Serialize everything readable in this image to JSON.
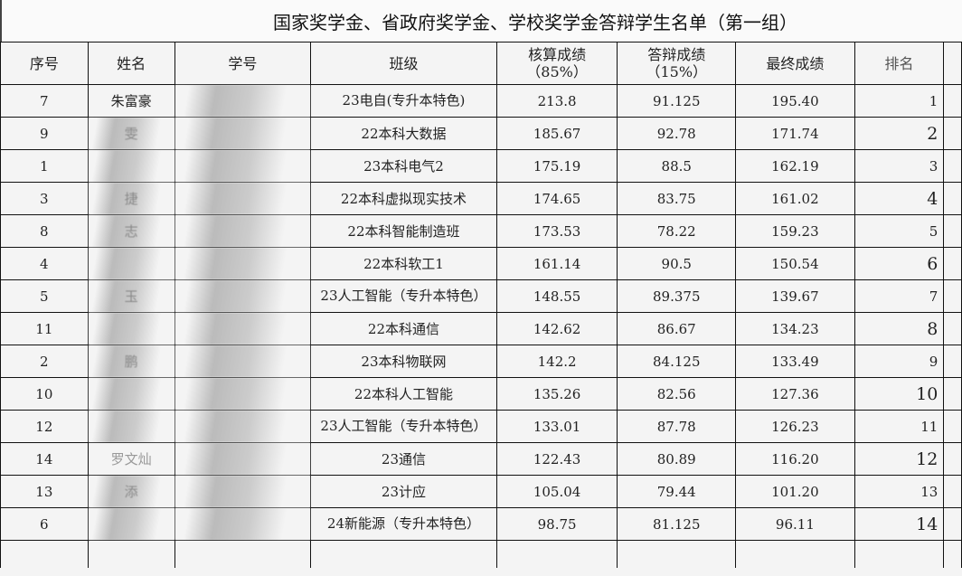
{
  "title": "国家奖学金、省政府奖学金、学校奖学金答辩学生名单（第一组）",
  "headers": {
    "no": "序号",
    "name": "姓名",
    "id": "学号",
    "class": "班级",
    "calc": "核算成绩",
    "calc_pct": "（85%）",
    "defense": "答辩成绩",
    "defense_pct": "（15%）",
    "final": "最终成绩",
    "rank": "排名"
  },
  "rows": [
    {
      "no": "7",
      "name": "朱富豪",
      "class": "23电自(专升本特色)",
      "calc": "213.8",
      "defense": "91.125",
      "final": "195.40",
      "rank": "1"
    },
    {
      "no": "9",
      "name": "雯",
      "class": "22本科大数据",
      "calc": "185.67",
      "defense": "92.78",
      "final": "171.74",
      "rank": "2"
    },
    {
      "no": "1",
      "name": "",
      "class": "23本科电气2",
      "calc": "175.19",
      "defense": "88.5",
      "final": "162.19",
      "rank": "3"
    },
    {
      "no": "3",
      "name": "捷",
      "class": "22本科虚拟现实技术",
      "calc": "174.65",
      "defense": "83.75",
      "final": "161.02",
      "rank": "4"
    },
    {
      "no": "8",
      "name": "志",
      "class": "22本科智能制造班",
      "calc": "173.53",
      "defense": "78.22",
      "final": "159.23",
      "rank": "5"
    },
    {
      "no": "4",
      "name": "",
      "class": "22本科软工1",
      "calc": "161.14",
      "defense": "90.5",
      "final": "150.54",
      "rank": "6"
    },
    {
      "no": "5",
      "name": "玉",
      "class": "23人工智能（专升本特色）",
      "calc": "148.55",
      "defense": "89.375",
      "final": "139.67",
      "rank": "7"
    },
    {
      "no": "11",
      "name": "",
      "class": "22本科通信",
      "calc": "142.62",
      "defense": "86.67",
      "final": "134.23",
      "rank": "8"
    },
    {
      "no": "2",
      "name": "鹏",
      "class": "23本科物联网",
      "calc": "142.2",
      "defense": "84.125",
      "final": "133.49",
      "rank": "9"
    },
    {
      "no": "10",
      "name": "",
      "class": "22本科人工智能",
      "calc": "135.26",
      "defense": "82.56",
      "final": "127.36",
      "rank": "10"
    },
    {
      "no": "12",
      "name": "",
      "class": "23人工智能（专升本特色）",
      "calc": "133.01",
      "defense": "87.78",
      "final": "126.23",
      "rank": "11"
    },
    {
      "no": "14",
      "name": "罗文灿",
      "class": "23通信",
      "calc": "122.43",
      "defense": "80.89",
      "final": "116.20",
      "rank": "12"
    },
    {
      "no": "13",
      "name": "添",
      "class": "23计应",
      "calc": "105.04",
      "defense": "79.44",
      "final": "101.20",
      "rank": "13"
    },
    {
      "no": "6",
      "name": "",
      "class": "24新能源（专升本特色）",
      "calc": "98.75",
      "defense": "81.125",
      "final": "96.11",
      "rank": "14"
    }
  ]
}
